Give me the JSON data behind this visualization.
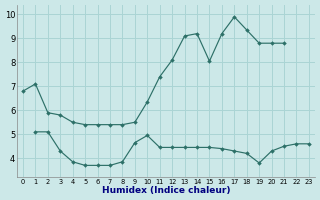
{
  "xlabel": "Humidex (Indice chaleur)",
  "bg_color": "#cce8e8",
  "grid_color": "#aad4d4",
  "line_color": "#2d7068",
  "line1_x": [
    0,
    1,
    2,
    3,
    4,
    5,
    6,
    7,
    8,
    9,
    10,
    11,
    12,
    13,
    14,
    15,
    16,
    17,
    18,
    19,
    20,
    21
  ],
  "line1_y": [
    6.8,
    7.1,
    5.9,
    5.8,
    5.5,
    5.4,
    5.4,
    5.4,
    5.4,
    5.5,
    6.35,
    7.4,
    8.1,
    9.1,
    9.2,
    8.05,
    9.2,
    9.9,
    9.35,
    8.8,
    8.8,
    8.8
  ],
  "line2_x": [
    1,
    2,
    3,
    4,
    5,
    6,
    7,
    8,
    9,
    10,
    11,
    12,
    13,
    14,
    15,
    16,
    17,
    18,
    19,
    20,
    21,
    22,
    23
  ],
  "line2_y": [
    5.1,
    5.1,
    4.3,
    3.85,
    3.7,
    3.7,
    3.7,
    3.85,
    4.65,
    4.95,
    4.45,
    4.45,
    4.45,
    4.45,
    4.45,
    4.4,
    4.3,
    4.2,
    3.8,
    4.3,
    4.5,
    4.6,
    4.6
  ],
  "ylim": [
    3.2,
    10.4
  ],
  "xlim": [
    -0.5,
    23.5
  ],
  "yticks": [
    4,
    5,
    6,
    7,
    8,
    9,
    10
  ],
  "xticks": [
    0,
    1,
    2,
    3,
    4,
    5,
    6,
    7,
    8,
    9,
    10,
    11,
    12,
    13,
    14,
    15,
    16,
    17,
    18,
    19,
    20,
    21,
    22,
    23
  ]
}
